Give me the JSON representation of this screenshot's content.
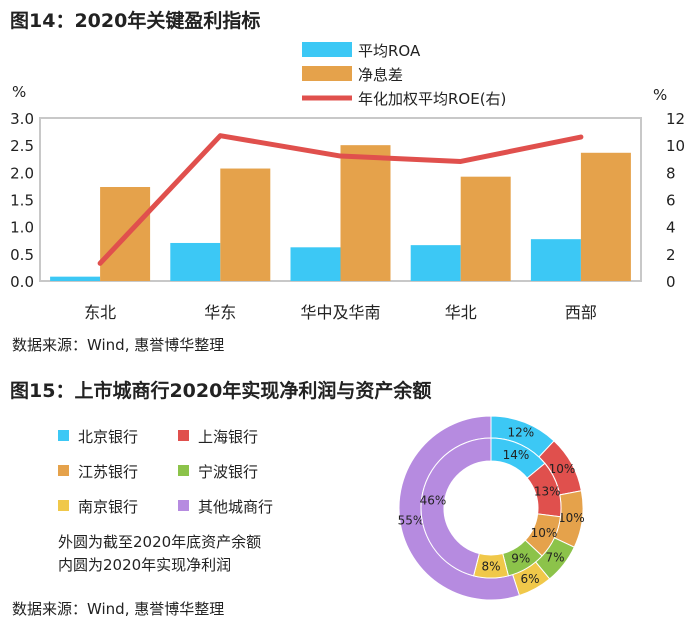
{
  "figure1": {
    "title": "图14：2020年关键盈利指标",
    "source": "数据来源：Wind, 惠誉博华整理",
    "chart_data": {
      "type": "bar",
      "categories": [
        "东北",
        "华东",
        "华中及华南",
        "华北",
        "西部"
      ],
      "series": [
        {
          "name": "平均ROA",
          "kind": "bar",
          "axis": "left",
          "color": "#3cc8f5",
          "values": [
            0.08,
            0.7,
            0.62,
            0.66,
            0.77
          ]
        },
        {
          "name": "净息差",
          "kind": "bar",
          "axis": "left",
          "color": "#e5a24b",
          "values": [
            1.73,
            2.07,
            2.5,
            1.92,
            2.36
          ]
        },
        {
          "name": "年化加权平均ROE(右)",
          "kind": "line",
          "axis": "right",
          "color": "#e0504d",
          "values": [
            1.3,
            10.7,
            9.2,
            8.8,
            10.6
          ]
        }
      ],
      "y_left": {
        "unit": "%",
        "min": 0,
        "max": 3.0,
        "ticks": [
          "0.0",
          "0.5",
          "1.0",
          "1.5",
          "2.0",
          "2.5",
          "3.0"
        ]
      },
      "y_right": {
        "unit": "%",
        "min": 0,
        "max": 12,
        "ticks": [
          "0",
          "2",
          "4",
          "6",
          "8",
          "10",
          "12"
        ]
      },
      "legend_position": "top-center",
      "grid": false
    }
  },
  "figure2": {
    "title": "图15：上市城商行2020年实现净利润与资产余额",
    "source": "数据来源：Wind, 惠誉博华整理",
    "notes": [
      "外圆为截至2020年底资产余额",
      "内圆为2020年实现净利润"
    ],
    "chart_data": {
      "type": "pie",
      "categories": [
        "北京银行",
        "上海银行",
        "江苏银行",
        "宁波银行",
        "南京银行",
        "其他城商行"
      ],
      "colors": [
        "#3cc8f5",
        "#e0504d",
        "#e5a24b",
        "#8cc34a",
        "#f0c84a",
        "#b68be0"
      ],
      "series": [
        {
          "ring": "outer",
          "values": [
            12,
            10,
            10,
            7,
            6,
            55
          ],
          "labels": [
            "12%",
            "10%",
            "10%",
            "7%",
            "6%",
            "55%"
          ]
        },
        {
          "ring": "inner",
          "values": [
            14,
            13,
            10,
            9,
            8,
            46
          ],
          "labels": [
            "14%",
            "13%",
            "10%",
            "9%",
            "8%",
            "46%"
          ]
        }
      ],
      "legend_position": "left"
    }
  }
}
